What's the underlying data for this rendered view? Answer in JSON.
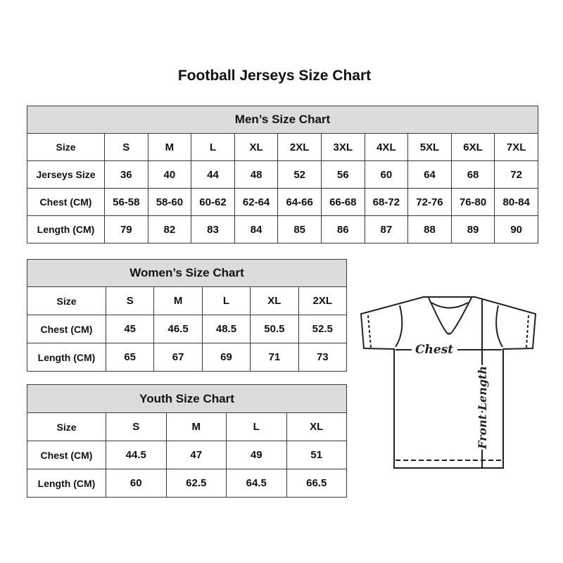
{
  "title": "Football Jerseys Size Chart",
  "men": {
    "heading": "Men’s Size Chart",
    "rows": [
      [
        "Size",
        "S",
        "M",
        "L",
        "XL",
        "2XL",
        "3XL",
        "4XL",
        "5XL",
        "6XL",
        "7XL"
      ],
      [
        "Jerseys Size",
        "36",
        "40",
        "44",
        "48",
        "52",
        "56",
        "60",
        "64",
        "68",
        "72"
      ],
      [
        "Chest (CM)",
        "56-58",
        "58-60",
        "60-62",
        "62-64",
        "64-66",
        "66-68",
        "68-72",
        "72-76",
        "76-80",
        "80-84"
      ],
      [
        "Length (CM)",
        "79",
        "82",
        "83",
        "84",
        "85",
        "86",
        "87",
        "88",
        "89",
        "90"
      ]
    ]
  },
  "women": {
    "heading": "Women’s Size Chart",
    "rows": [
      [
        "Size",
        "S",
        "M",
        "L",
        "XL",
        "2XL"
      ],
      [
        "Chest (CM)",
        "45",
        "46.5",
        "48.5",
        "50.5",
        "52.5"
      ],
      [
        "Length (CM)",
        "65",
        "67",
        "69",
        "71",
        "73"
      ]
    ]
  },
  "youth": {
    "heading": "Youth Size Chart",
    "rows": [
      [
        "Size",
        "S",
        "M",
        "L",
        "XL"
      ],
      [
        "Chest (CM)",
        "44.5",
        "47",
        "49",
        "51"
      ],
      [
        "Length (CM)",
        "60",
        "62.5",
        "64.5",
        "66.5"
      ]
    ]
  },
  "diagram": {
    "chest_label": "Chest",
    "length_label": "Front Length"
  },
  "colors": {
    "header_bg": "#dcdcdc",
    "border": "#3a3a3a"
  }
}
